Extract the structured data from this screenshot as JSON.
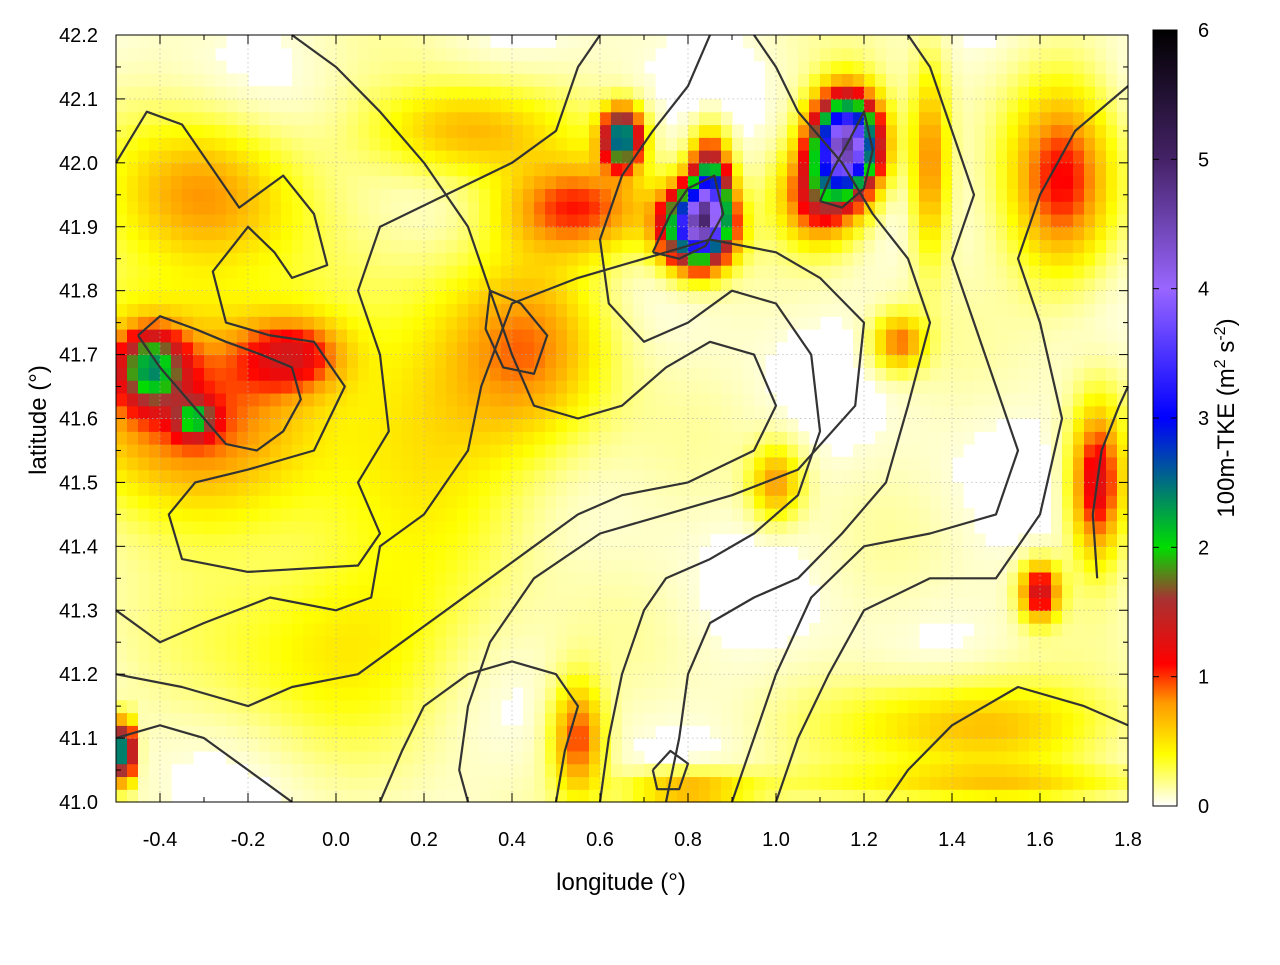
{
  "chart_data": {
    "type": "heatmap",
    "title": "",
    "xlabel": "longitude (°)",
    "ylabel": "latitude (°)",
    "xlim": [
      -0.5,
      1.8
    ],
    "ylim": [
      41.0,
      42.2
    ],
    "xticks": [
      "-0.4",
      "-0.2",
      "0.0",
      "0.2",
      "0.4",
      "0.6",
      "0.8",
      "1.0",
      "1.2",
      "1.4",
      "1.6",
      "1.8"
    ],
    "yticks": [
      "41.0",
      "41.1",
      "41.2",
      "41.3",
      "41.4",
      "41.5",
      "41.6",
      "41.7",
      "41.8",
      "41.9",
      "42.0",
      "42.1",
      "42.2"
    ],
    "grid": true,
    "colorbar": {
      "label_main": "100m-TKE (m",
      "label_sup1": "2",
      "label_mid": " s",
      "label_sup2": "-2",
      "label_end": ")",
      "range": [
        0,
        6
      ],
      "ticks": [
        "0",
        "1",
        "2",
        "3",
        "4",
        "5",
        "6"
      ],
      "stops": [
        {
          "v": 0.0,
          "color": "#ffffff"
        },
        {
          "v": 0.4,
          "color": "#ffff00"
        },
        {
          "v": 0.8,
          "color": "#ff9900"
        },
        {
          "v": 1.1,
          "color": "#ff0000"
        },
        {
          "v": 1.6,
          "color": "#a83232"
        },
        {
          "v": 2.0,
          "color": "#00dd00"
        },
        {
          "v": 3.0,
          "color": "#0000ff"
        },
        {
          "v": 4.0,
          "color": "#9966ff"
        },
        {
          "v": 5.0,
          "color": "#442266"
        },
        {
          "v": 6.0,
          "color": "#000000"
        }
      ]
    },
    "hotspots": [
      {
        "lon": -0.35,
        "lat": 41.62,
        "amp": 0.9,
        "sx": 0.18,
        "sy": 0.12
      },
      {
        "lon": -0.42,
        "lat": 41.68,
        "amp": 1.6,
        "sx": 0.05,
        "sy": 0.04
      },
      {
        "lon": -0.32,
        "lat": 41.6,
        "amp": 1.3,
        "sx": 0.03,
        "sy": 0.02
      },
      {
        "lon": -0.3,
        "lat": 41.95,
        "amp": 0.7,
        "sx": 0.14,
        "sy": 0.08
      },
      {
        "lon": -0.1,
        "lat": 41.7,
        "amp": 0.9,
        "sx": 0.08,
        "sy": 0.04
      },
      {
        "lon": 0.82,
        "lat": 41.9,
        "amp": 3.8,
        "sx": 0.05,
        "sy": 0.04
      },
      {
        "lon": 0.85,
        "lat": 41.96,
        "amp": 2.4,
        "sx": 0.03,
        "sy": 0.05
      },
      {
        "lon": 0.65,
        "lat": 42.04,
        "amp": 2.6,
        "sx": 0.03,
        "sy": 0.03
      },
      {
        "lon": 1.16,
        "lat": 42.03,
        "amp": 4.4,
        "sx": 0.05,
        "sy": 0.05
      },
      {
        "lon": 1.1,
        "lat": 41.95,
        "amp": 1.2,
        "sx": 0.06,
        "sy": 0.05
      },
      {
        "lon": 0.55,
        "lat": 41.93,
        "amp": 0.9,
        "sx": 0.12,
        "sy": 0.05
      },
      {
        "lon": 0.45,
        "lat": 41.72,
        "amp": 0.6,
        "sx": 0.12,
        "sy": 0.1
      },
      {
        "lon": 0.2,
        "lat": 41.6,
        "amp": 0.45,
        "sx": 0.2,
        "sy": 0.15
      },
      {
        "lon": 1.65,
        "lat": 41.97,
        "amp": 1.0,
        "sx": 0.08,
        "sy": 0.1
      },
      {
        "lon": 1.73,
        "lat": 41.5,
        "amp": 1.2,
        "sx": 0.04,
        "sy": 0.08
      },
      {
        "lon": 1.6,
        "lat": 41.33,
        "amp": 1.3,
        "sx": 0.03,
        "sy": 0.03
      },
      {
        "lon": 1.45,
        "lat": 41.12,
        "amp": 0.6,
        "sx": 0.2,
        "sy": 0.05
      },
      {
        "lon": 1.0,
        "lat": 41.5,
        "amp": 0.7,
        "sx": 0.04,
        "sy": 0.04
      },
      {
        "lon": 0.55,
        "lat": 41.1,
        "amp": 0.9,
        "sx": 0.04,
        "sy": 0.06
      },
      {
        "lon": -0.48,
        "lat": 41.08,
        "amp": 2.8,
        "sx": 0.015,
        "sy": 0.03
      },
      {
        "lon": 1.28,
        "lat": 41.72,
        "amp": 0.8,
        "sx": 0.04,
        "sy": 0.03
      },
      {
        "lon": 0.3,
        "lat": 42.05,
        "amp": 0.6,
        "sx": 0.15,
        "sy": 0.05
      },
      {
        "lon": 1.35,
        "lat": 42.0,
        "amp": 0.8,
        "sx": 0.03,
        "sy": 0.1
      },
      {
        "lon": 0.0,
        "lat": 41.25,
        "amp": 0.4,
        "sx": 0.2,
        "sy": 0.1
      },
      {
        "lon": 0.8,
        "lat": 41.02,
        "amp": 0.7,
        "sx": 0.1,
        "sy": 0.02
      },
      {
        "lon": 1.5,
        "lat": 41.03,
        "amp": 0.4,
        "sx": 0.3,
        "sy": 0.02
      }
    ],
    "contours": [
      [
        [
          -0.5,
          42.0
        ],
        [
          -0.43,
          42.08
        ],
        [
          -0.35,
          42.06
        ],
        [
          -0.22,
          41.93
        ],
        [
          -0.12,
          41.98
        ],
        [
          -0.05,
          41.92
        ],
        [
          -0.02,
          41.84
        ],
        [
          -0.1,
          41.82
        ],
        [
          -0.14,
          41.86
        ],
        [
          -0.2,
          41.9
        ],
        [
          -0.28,
          41.83
        ],
        [
          -0.25,
          41.75
        ],
        [
          -0.15,
          41.73
        ],
        [
          -0.05,
          41.72
        ],
        [
          0.02,
          41.65
        ],
        [
          -0.05,
          41.55
        ],
        [
          -0.2,
          41.52
        ],
        [
          -0.32,
          41.5
        ],
        [
          -0.38,
          41.45
        ],
        [
          -0.35,
          41.38
        ],
        [
          -0.2,
          41.36
        ],
        [
          0.05,
          41.37
        ],
        [
          0.1,
          41.42
        ],
        [
          0.05,
          41.5
        ],
        [
          0.12,
          41.58
        ],
        [
          0.1,
          41.7
        ],
        [
          0.05,
          41.8
        ],
        [
          0.1,
          41.9
        ],
        [
          0.25,
          41.95
        ],
        [
          0.4,
          42.0
        ],
        [
          0.5,
          42.05
        ],
        [
          0.55,
          42.15
        ],
        [
          0.6,
          42.2
        ]
      ],
      [
        [
          -0.5,
          41.3
        ],
        [
          -0.4,
          41.25
        ],
        [
          -0.3,
          41.28
        ],
        [
          -0.15,
          41.32
        ],
        [
          0.0,
          41.3
        ],
        [
          0.08,
          41.32
        ],
        [
          0.1,
          41.4
        ],
        [
          0.2,
          41.45
        ],
        [
          0.3,
          41.55
        ],
        [
          0.33,
          41.65
        ],
        [
          0.4,
          41.78
        ],
        [
          0.55,
          41.82
        ],
        [
          0.7,
          41.85
        ],
        [
          0.85,
          41.88
        ],
        [
          1.0,
          41.86
        ],
        [
          1.1,
          41.82
        ],
        [
          1.2,
          41.75
        ],
        [
          1.18,
          41.62
        ],
        [
          1.05,
          41.52
        ],
        [
          0.9,
          41.48
        ],
        [
          0.75,
          41.45
        ],
        [
          0.6,
          41.42
        ],
        [
          0.45,
          41.35
        ],
        [
          0.35,
          41.25
        ],
        [
          0.3,
          41.15
        ],
        [
          0.28,
          41.05
        ],
        [
          0.3,
          41.0
        ]
      ],
      [
        [
          1.8,
          41.12
        ],
        [
          1.7,
          41.15
        ],
        [
          1.55,
          41.18
        ],
        [
          1.4,
          41.12
        ],
        [
          1.3,
          41.05
        ],
        [
          1.25,
          41.0
        ]
      ],
      [
        [
          1.0,
          41.0
        ],
        [
          1.05,
          41.1
        ],
        [
          1.12,
          41.2
        ],
        [
          1.2,
          41.3
        ],
        [
          1.35,
          41.35
        ],
        [
          1.5,
          41.35
        ],
        [
          1.6,
          41.45
        ],
        [
          1.65,
          41.6
        ],
        [
          1.6,
          41.75
        ],
        [
          1.55,
          41.85
        ],
        [
          1.6,
          41.95
        ],
        [
          1.68,
          42.05
        ],
        [
          1.8,
          42.12
        ]
      ],
      [
        [
          0.9,
          41.0
        ],
        [
          0.95,
          41.1
        ],
        [
          1.0,
          41.2
        ],
        [
          1.08,
          41.32
        ],
        [
          1.2,
          41.4
        ],
        [
          1.35,
          41.42
        ],
        [
          1.5,
          41.45
        ],
        [
          1.55,
          41.55
        ],
        [
          1.5,
          41.65
        ],
        [
          1.45,
          41.75
        ],
        [
          1.4,
          41.85
        ],
        [
          1.45,
          41.95
        ],
        [
          1.4,
          42.05
        ],
        [
          1.35,
          42.15
        ],
        [
          1.3,
          42.2
        ]
      ],
      [
        [
          0.75,
          41.0
        ],
        [
          0.78,
          41.1
        ],
        [
          0.8,
          41.2
        ],
        [
          0.85,
          41.28
        ],
        [
          0.95,
          41.32
        ],
        [
          1.05,
          41.35
        ],
        [
          1.15,
          41.42
        ],
        [
          1.25,
          41.5
        ],
        [
          1.3,
          41.62
        ],
        [
          1.35,
          41.75
        ],
        [
          1.3,
          41.85
        ],
        [
          1.22,
          41.92
        ],
        [
          1.15,
          42.0
        ],
        [
          1.05,
          42.08
        ],
        [
          1.0,
          42.15
        ],
        [
          0.95,
          42.2
        ]
      ],
      [
        [
          0.6,
          41.0
        ],
        [
          0.62,
          41.1
        ],
        [
          0.65,
          41.2
        ],
        [
          0.7,
          41.3
        ],
        [
          0.75,
          41.35
        ],
        [
          0.85,
          41.38
        ],
        [
          0.95,
          41.42
        ],
        [
          1.05,
          41.48
        ],
        [
          1.1,
          41.58
        ],
        [
          1.08,
          41.7
        ],
        [
          1.0,
          41.78
        ],
        [
          0.9,
          41.8
        ],
        [
          0.8,
          41.75
        ],
        [
          0.7,
          41.72
        ],
        [
          0.62,
          41.78
        ],
        [
          0.6,
          41.88
        ],
        [
          0.65,
          41.98
        ],
        [
          0.72,
          42.05
        ],
        [
          0.8,
          42.12
        ],
        [
          0.85,
          42.2
        ]
      ],
      [
        [
          -0.5,
          41.2
        ],
        [
          -0.35,
          41.18
        ],
        [
          -0.2,
          41.15
        ],
        [
          -0.1,
          41.18
        ],
        [
          0.05,
          41.2
        ],
        [
          0.15,
          41.25
        ],
        [
          0.25,
          41.3
        ],
        [
          0.35,
          41.35
        ],
        [
          0.45,
          41.4
        ],
        [
          0.55,
          41.45
        ],
        [
          0.65,
          41.48
        ],
        [
          0.8,
          41.5
        ],
        [
          0.95,
          41.55
        ],
        [
          1.0,
          41.62
        ],
        [
          0.95,
          41.7
        ],
        [
          0.85,
          41.72
        ],
        [
          0.75,
          41.68
        ],
        [
          0.65,
          41.62
        ],
        [
          0.55,
          41.6
        ],
        [
          0.45,
          41.62
        ],
        [
          0.4,
          41.7
        ],
        [
          0.35,
          41.8
        ],
        [
          0.3,
          41.9
        ],
        [
          0.2,
          42.0
        ],
        [
          0.1,
          42.08
        ],
        [
          0.0,
          42.15
        ],
        [
          -0.1,
          42.2
        ]
      ],
      [
        [
          -0.5,
          41.1
        ],
        [
          -0.4,
          41.12
        ],
        [
          -0.3,
          41.1
        ],
        [
          -0.2,
          41.05
        ],
        [
          -0.1,
          41.0
        ]
      ],
      [
        [
          0.1,
          41.0
        ],
        [
          0.15,
          41.08
        ],
        [
          0.2,
          41.15
        ],
        [
          0.3,
          41.2
        ],
        [
          0.4,
          41.22
        ],
        [
          0.5,
          41.2
        ],
        [
          0.55,
          41.15
        ],
        [
          0.52,
          41.08
        ],
        [
          0.5,
          41.0
        ]
      ],
      [
        [
          -0.45,
          41.73
        ],
        [
          -0.4,
          41.68
        ],
        [
          -0.35,
          41.64
        ],
        [
          -0.3,
          41.6
        ],
        [
          -0.25,
          41.56
        ],
        [
          -0.18,
          41.55
        ],
        [
          -0.12,
          41.58
        ],
        [
          -0.08,
          41.63
        ],
        [
          -0.1,
          41.68
        ],
        [
          -0.17,
          41.7
        ],
        [
          -0.25,
          41.72
        ],
        [
          -0.32,
          41.74
        ],
        [
          -0.4,
          41.76
        ],
        [
          -0.45,
          41.73
        ]
      ],
      [
        [
          1.1,
          41.94
        ],
        [
          1.13,
          41.99
        ],
        [
          1.17,
          42.04
        ],
        [
          1.2,
          42.08
        ],
        [
          1.22,
          42.02
        ],
        [
          1.2,
          41.96
        ],
        [
          1.15,
          41.93
        ],
        [
          1.1,
          41.94
        ]
      ],
      [
        [
          0.72,
          41.86
        ],
        [
          0.76,
          41.92
        ],
        [
          0.8,
          41.96
        ],
        [
          0.86,
          41.98
        ],
        [
          0.88,
          41.92
        ],
        [
          0.84,
          41.87
        ],
        [
          0.78,
          41.85
        ],
        [
          0.72,
          41.86
        ]
      ],
      [
        [
          1.73,
          41.35
        ],
        [
          1.72,
          41.45
        ],
        [
          1.74,
          41.55
        ],
        [
          1.78,
          41.62
        ],
        [
          1.8,
          41.65
        ]
      ],
      [
        [
          0.35,
          41.8
        ],
        [
          0.42,
          41.78
        ],
        [
          0.48,
          41.73
        ],
        [
          0.45,
          41.67
        ],
        [
          0.38,
          41.68
        ],
        [
          0.34,
          41.74
        ],
        [
          0.35,
          41.8
        ]
      ],
      [
        [
          0.72,
          41.05
        ],
        [
          0.76,
          41.08
        ],
        [
          0.8,
          41.06
        ],
        [
          0.78,
          41.02
        ],
        [
          0.73,
          41.02
        ],
        [
          0.72,
          41.05
        ]
      ]
    ]
  }
}
